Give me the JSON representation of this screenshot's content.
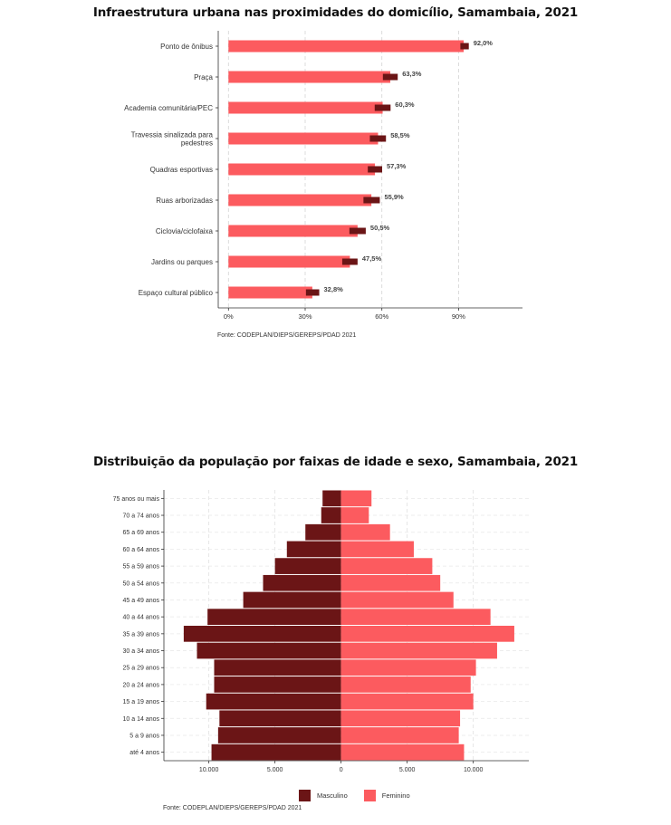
{
  "chart_data": [
    {
      "type": "bar",
      "orientation": "horizontal",
      "title": "Infraestrutura urbana nas proximidades do domicílio, Samambaia, 2021",
      "categories": [
        "Ponto de ônibus",
        "Praça",
        "Academia comunitária/PEC",
        "Travessia sinalizada para pedestres",
        "Quadras esportivas",
        "Ruas arborizadas",
        "Ciclovia/ciclofaixa",
        "Jardins ou parques",
        "Espaço cultural público"
      ],
      "category_lines": [
        [
          "Ponto de ônibus"
        ],
        [
          "Praça"
        ],
        [
          "Academia comunitária/PEC"
        ],
        [
          "Travessia sinalizada para",
          "pedestres"
        ],
        [
          "Quadras esportivas"
        ],
        [
          "Ruas arborizadas"
        ],
        [
          "Ciclovia/ciclofaixa"
        ],
        [
          "Jardins ou parques"
        ],
        [
          "Espaço cultural público"
        ]
      ],
      "values": [
        92.0,
        63.3,
        60.3,
        58.5,
        57.3,
        55.9,
        50.5,
        47.5,
        32.8
      ],
      "value_labels": [
        "92,0%",
        "63,3%",
        "60,3%",
        "58,5%",
        "57,3%",
        "55,9%",
        "50,5%",
        "47,5%",
        "32,8%"
      ],
      "ci_low": [
        90.7,
        60.4,
        57.2,
        55.3,
        54.5,
        52.8,
        47.3,
        44.5,
        30.3
      ],
      "ci_high": [
        94.0,
        66.2,
        63.4,
        61.6,
        60.1,
        59.2,
        53.7,
        50.5,
        35.5
      ],
      "xlim": [
        -4,
        115
      ],
      "xticks": [
        0,
        30,
        60,
        90
      ],
      "xtick_labels": [
        "0%",
        "30%",
        "60%",
        "90%"
      ],
      "bar_color": "#fc5b5f",
      "ci_color": "#6b1516",
      "grid": true,
      "source": "Fonte: CODEPLAN/DIEPS/GEREPS/PDAD 2021"
    },
    {
      "type": "bar",
      "orientation": "horizontal",
      "subtype": "population-pyramid",
      "title": "Distribuição da população por faixas de idade e sexo, Samambaia, 2021",
      "categories": [
        "75 anos ou mais",
        "70 a 74 anos",
        "65 a 69 anos",
        "60 a 64 anos",
        "55 a 59 anos",
        "50 a 54 anos",
        "45 a 49 anos",
        "40 a 44 anos",
        "35 a 39 anos",
        "30 a 34 anos",
        "25 a 29 anos",
        "20 a 24 anos",
        "15 a 19 anos",
        "10 a 14 anos",
        "5 a 9 anos",
        "até 4 anos"
      ],
      "series": [
        {
          "name": "Masculino",
          "color": "#6b1516",
          "values": [
            1400,
            1500,
            2700,
            4100,
            5000,
            5900,
            7400,
            10100,
            11900,
            10900,
            9600,
            9600,
            10200,
            9200,
            9300,
            9800
          ]
        },
        {
          "name": "Feminino",
          "color": "#fc5b5f",
          "values": [
            2300,
            2100,
            3700,
            5500,
            6900,
            7500,
            8500,
            11300,
            13100,
            11800,
            10200,
            9800,
            10000,
            9000,
            8900,
            9300
          ]
        }
      ],
      "xlim": [
        -13400,
        14200
      ],
      "xticks": [
        -10000,
        -5000,
        0,
        5000,
        10000
      ],
      "xtick_labels": [
        "10.000",
        "5.000",
        "0",
        "5.000",
        "10.000"
      ],
      "legend_position": "bottom",
      "grid": true,
      "source": "Fonte: CODEPLAN/DIEPS/GEREPS/PDAD 2021"
    }
  ]
}
